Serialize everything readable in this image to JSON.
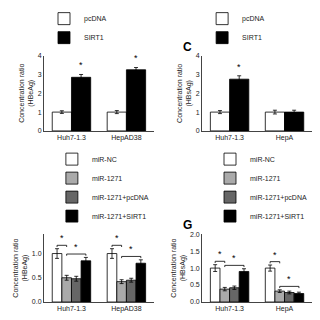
{
  "chart_data": [
    {
      "type": "bar",
      "ylabel": "Concentration ratio\n(HBeAg)",
      "categories": [
        "Huh7-1.3",
        "HepAD38"
      ],
      "series": [
        {
          "name": "pcDNA",
          "color": "white",
          "values": [
            1.0,
            1.0
          ],
          "errors": [
            0.07,
            0.08
          ]
        },
        {
          "name": "SIRT1",
          "color": "black",
          "values": [
            2.85,
            3.25
          ],
          "errors": [
            0.15,
            0.12
          ]
        }
      ],
      "ylim": [
        0,
        4
      ],
      "yticks": [
        0,
        1,
        2,
        3,
        4
      ],
      "grid": false,
      "legend": "upper left",
      "annotations": [
        {
          "text": "*",
          "category": "Huh7-1.3",
          "series": "SIRT1"
        },
        {
          "text": "*",
          "category": "HepAD38",
          "series": "SIRT1"
        }
      ]
    },
    {
      "type": "bar",
      "title": "C",
      "ylabel": "Concentration ratio\n(HBsAg)",
      "categories": [
        "Huh7-1.3",
        "HepA"
      ],
      "series": [
        {
          "name": "pcDNA",
          "color": "white",
          "values": [
            1.0,
            1.0
          ],
          "errors": [
            0.08,
            0.1
          ]
        },
        {
          "name": "SIRT1",
          "color": "black",
          "values": [
            2.75,
            1.0
          ],
          "errors": [
            0.18,
            0.1
          ]
        }
      ],
      "ylim": [
        0,
        4
      ],
      "yticks": [
        0,
        1,
        2,
        3,
        4
      ],
      "grid": false,
      "legend": "upper left",
      "annotations": [
        {
          "text": "*",
          "category": "Huh7-1.3",
          "series": "SIRT1"
        }
      ]
    },
    {
      "type": "bar",
      "ylabel": "Concentration ratio\n(HBeAg)",
      "categories": [
        "Huh7-1.3",
        "HepAD38"
      ],
      "series": [
        {
          "name": "miR-NC",
          "color": "white",
          "values": [
            1.0,
            1.0
          ],
          "errors": [
            0.1,
            0.1
          ]
        },
        {
          "name": "miR-1271",
          "color": "#aaaaaa",
          "values": [
            0.5,
            0.42
          ],
          "errors": [
            0.05,
            0.04
          ]
        },
        {
          "name": "miR-1271+pcDNA",
          "color": "#666666",
          "values": [
            0.48,
            0.45
          ],
          "errors": [
            0.05,
            0.04
          ]
        },
        {
          "name": "miR-1271+SIRT1",
          "color": "black",
          "values": [
            0.85,
            0.8
          ],
          "errors": [
            0.07,
            0.07
          ]
        }
      ],
      "ylim": [
        0,
        1.4
      ],
      "yticks": [
        {
          "value": 0,
          "label": "0.0"
        },
        0.5,
        {
          "value": 1.0,
          "label": "1.0"
        }
      ],
      "grid": false,
      "legend": "upper right",
      "annotations": [
        {
          "text": "*",
          "category": "Huh7-1.3",
          "series": [
            "miR-NC",
            "miR-1271"
          ]
        },
        {
          "text": "*",
          "category": "Huh7-1.3",
          "series": [
            "miR-1271",
            "miR-1271+SIRT1"
          ]
        },
        {
          "text": "*",
          "category": "HepAD38",
          "series": [
            "miR-NC",
            "miR-1271"
          ]
        },
        {
          "text": "*",
          "category": "HepAD38",
          "series": [
            "miR-1271",
            "miR-1271+SIRT1"
          ]
        }
      ]
    },
    {
      "type": "bar",
      "title": "G",
      "ylabel": "Concentration ratio\n(HBsAg)",
      "categories": [
        "Huh7-1.3",
        "HepA"
      ],
      "series": [
        {
          "name": "miR-NC",
          "color": "white",
          "values": [
            1.0,
            1.0
          ],
          "errors": [
            0.1,
            0.09
          ]
        },
        {
          "name": "miR-1271",
          "color": "#aaaaaa",
          "values": [
            0.38,
            0.32
          ],
          "errors": [
            0.05,
            0.04
          ]
        },
        {
          "name": "miR-1271+pcDNA",
          "color": "#666666",
          "values": [
            0.42,
            0.28
          ],
          "errors": [
            0.05,
            0.04
          ]
        },
        {
          "name": "miR-1271+SIRT1",
          "color": "black",
          "values": [
            0.9,
            0.25
          ],
          "errors": [
            0.08,
            0.04
          ]
        }
      ],
      "ylim": [
        0,
        2.0
      ],
      "yticks": [
        {
          "value": 0.0,
          "label": "0.0"
        },
        0.5,
        {
          "value": 1.0,
          "label": "1.0"
        },
        1.5,
        {
          "value": 2.0,
          "label": "2.0"
        }
      ],
      "grid": false,
      "legend": "upper right",
      "annotations": [
        {
          "text": "*",
          "category": "Huh7-1.3",
          "series": [
            "miR-NC",
            "miR-1271"
          ]
        },
        {
          "text": "*",
          "category": "Huh7-1.3",
          "series": [
            "miR-1271",
            "miR-1271+SIRT1"
          ]
        },
        {
          "text": "*",
          "category": "HepA",
          "series": [
            "miR-NC",
            "miR-1271"
          ]
        },
        {
          "text": "*",
          "category": "HepA",
          "series": [
            "miR-1271",
            "miR-1271+SIRT1"
          ]
        }
      ]
    }
  ]
}
